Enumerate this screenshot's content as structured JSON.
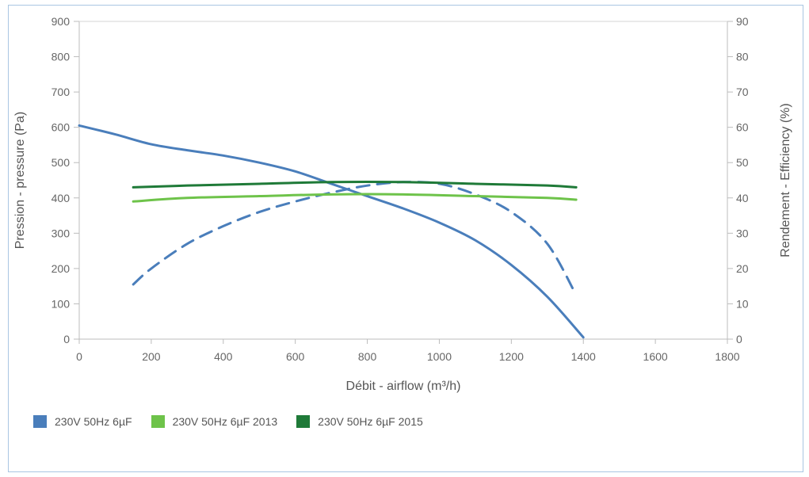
{
  "chart_data": {
    "type": "line",
    "title": "",
    "xlabel": "Débit - airflow (m³/h)",
    "ylabel_left": "Pression - pressure (Pa)",
    "ylabel_right": "Rendement - Efficiency (%)",
    "xlim": [
      0,
      1800
    ],
    "ylim_left": [
      0,
      900
    ],
    "ylim_right": [
      0,
      90
    ],
    "x_ticks": [
      "0",
      "200",
      "400",
      "600",
      "800",
      "1000",
      "1200",
      "1400",
      "1600",
      "1800"
    ],
    "y_left_ticks": [
      "0",
      "100",
      "200",
      "300",
      "400",
      "500",
      "600",
      "700",
      "800",
      "900"
    ],
    "y_right_ticks": [
      "0",
      "10",
      "20",
      "30",
      "40",
      "50",
      "60",
      "70",
      "80",
      "90"
    ],
    "grid": false,
    "legend_position": "bottom-left",
    "series": [
      {
        "name": "230V 50Hz 6µF",
        "color": "#4a7ebb",
        "axis": "left",
        "style": "solid",
        "points": [
          [
            0,
            605
          ],
          [
            100,
            580
          ],
          [
            200,
            552
          ],
          [
            300,
            535
          ],
          [
            400,
            520
          ],
          [
            500,
            500
          ],
          [
            600,
            475
          ],
          [
            700,
            440
          ],
          [
            800,
            405
          ],
          [
            900,
            370
          ],
          [
            1000,
            330
          ],
          [
            1100,
            280
          ],
          [
            1200,
            210
          ],
          [
            1300,
            120
          ],
          [
            1400,
            5
          ]
        ]
      },
      {
        "name": "230V 50Hz 6µF",
        "color": "#4a7ebb",
        "axis": "right",
        "style": "dashed",
        "points": [
          [
            150,
            15.5
          ],
          [
            200,
            20
          ],
          [
            300,
            27
          ],
          [
            400,
            32
          ],
          [
            500,
            36
          ],
          [
            600,
            39
          ],
          [
            700,
            41.5
          ],
          [
            800,
            43.5
          ],
          [
            900,
            44.5
          ],
          [
            1000,
            44
          ],
          [
            1100,
            41
          ],
          [
            1200,
            36
          ],
          [
            1300,
            27
          ],
          [
            1380,
            12.5
          ]
        ]
      },
      {
        "name": "230V 50Hz 6µF 2013",
        "color": "#6ec34a",
        "axis": "right",
        "style": "solid",
        "points": [
          [
            150,
            39
          ],
          [
            300,
            40
          ],
          [
            500,
            40.5
          ],
          [
            700,
            41
          ],
          [
            900,
            41
          ],
          [
            1100,
            40.5
          ],
          [
            1300,
            40
          ],
          [
            1380,
            39.5
          ]
        ]
      },
      {
        "name": "230V 50Hz 6µF 2015",
        "color": "#1f7a38",
        "axis": "right",
        "style": "solid",
        "points": [
          [
            150,
            43
          ],
          [
            300,
            43.5
          ],
          [
            500,
            44
          ],
          [
            700,
            44.5
          ],
          [
            900,
            44.5
          ],
          [
            1100,
            44
          ],
          [
            1300,
            43.5
          ],
          [
            1380,
            43
          ]
        ]
      }
    ]
  },
  "legend": [
    {
      "label": "230V 50Hz 6µF",
      "color": "#4a7ebb"
    },
    {
      "label": "230V 50Hz 6µF 2013",
      "color": "#6ec34a"
    },
    {
      "label": "230V 50Hz 6µF 2015",
      "color": "#1f7a38"
    }
  ]
}
